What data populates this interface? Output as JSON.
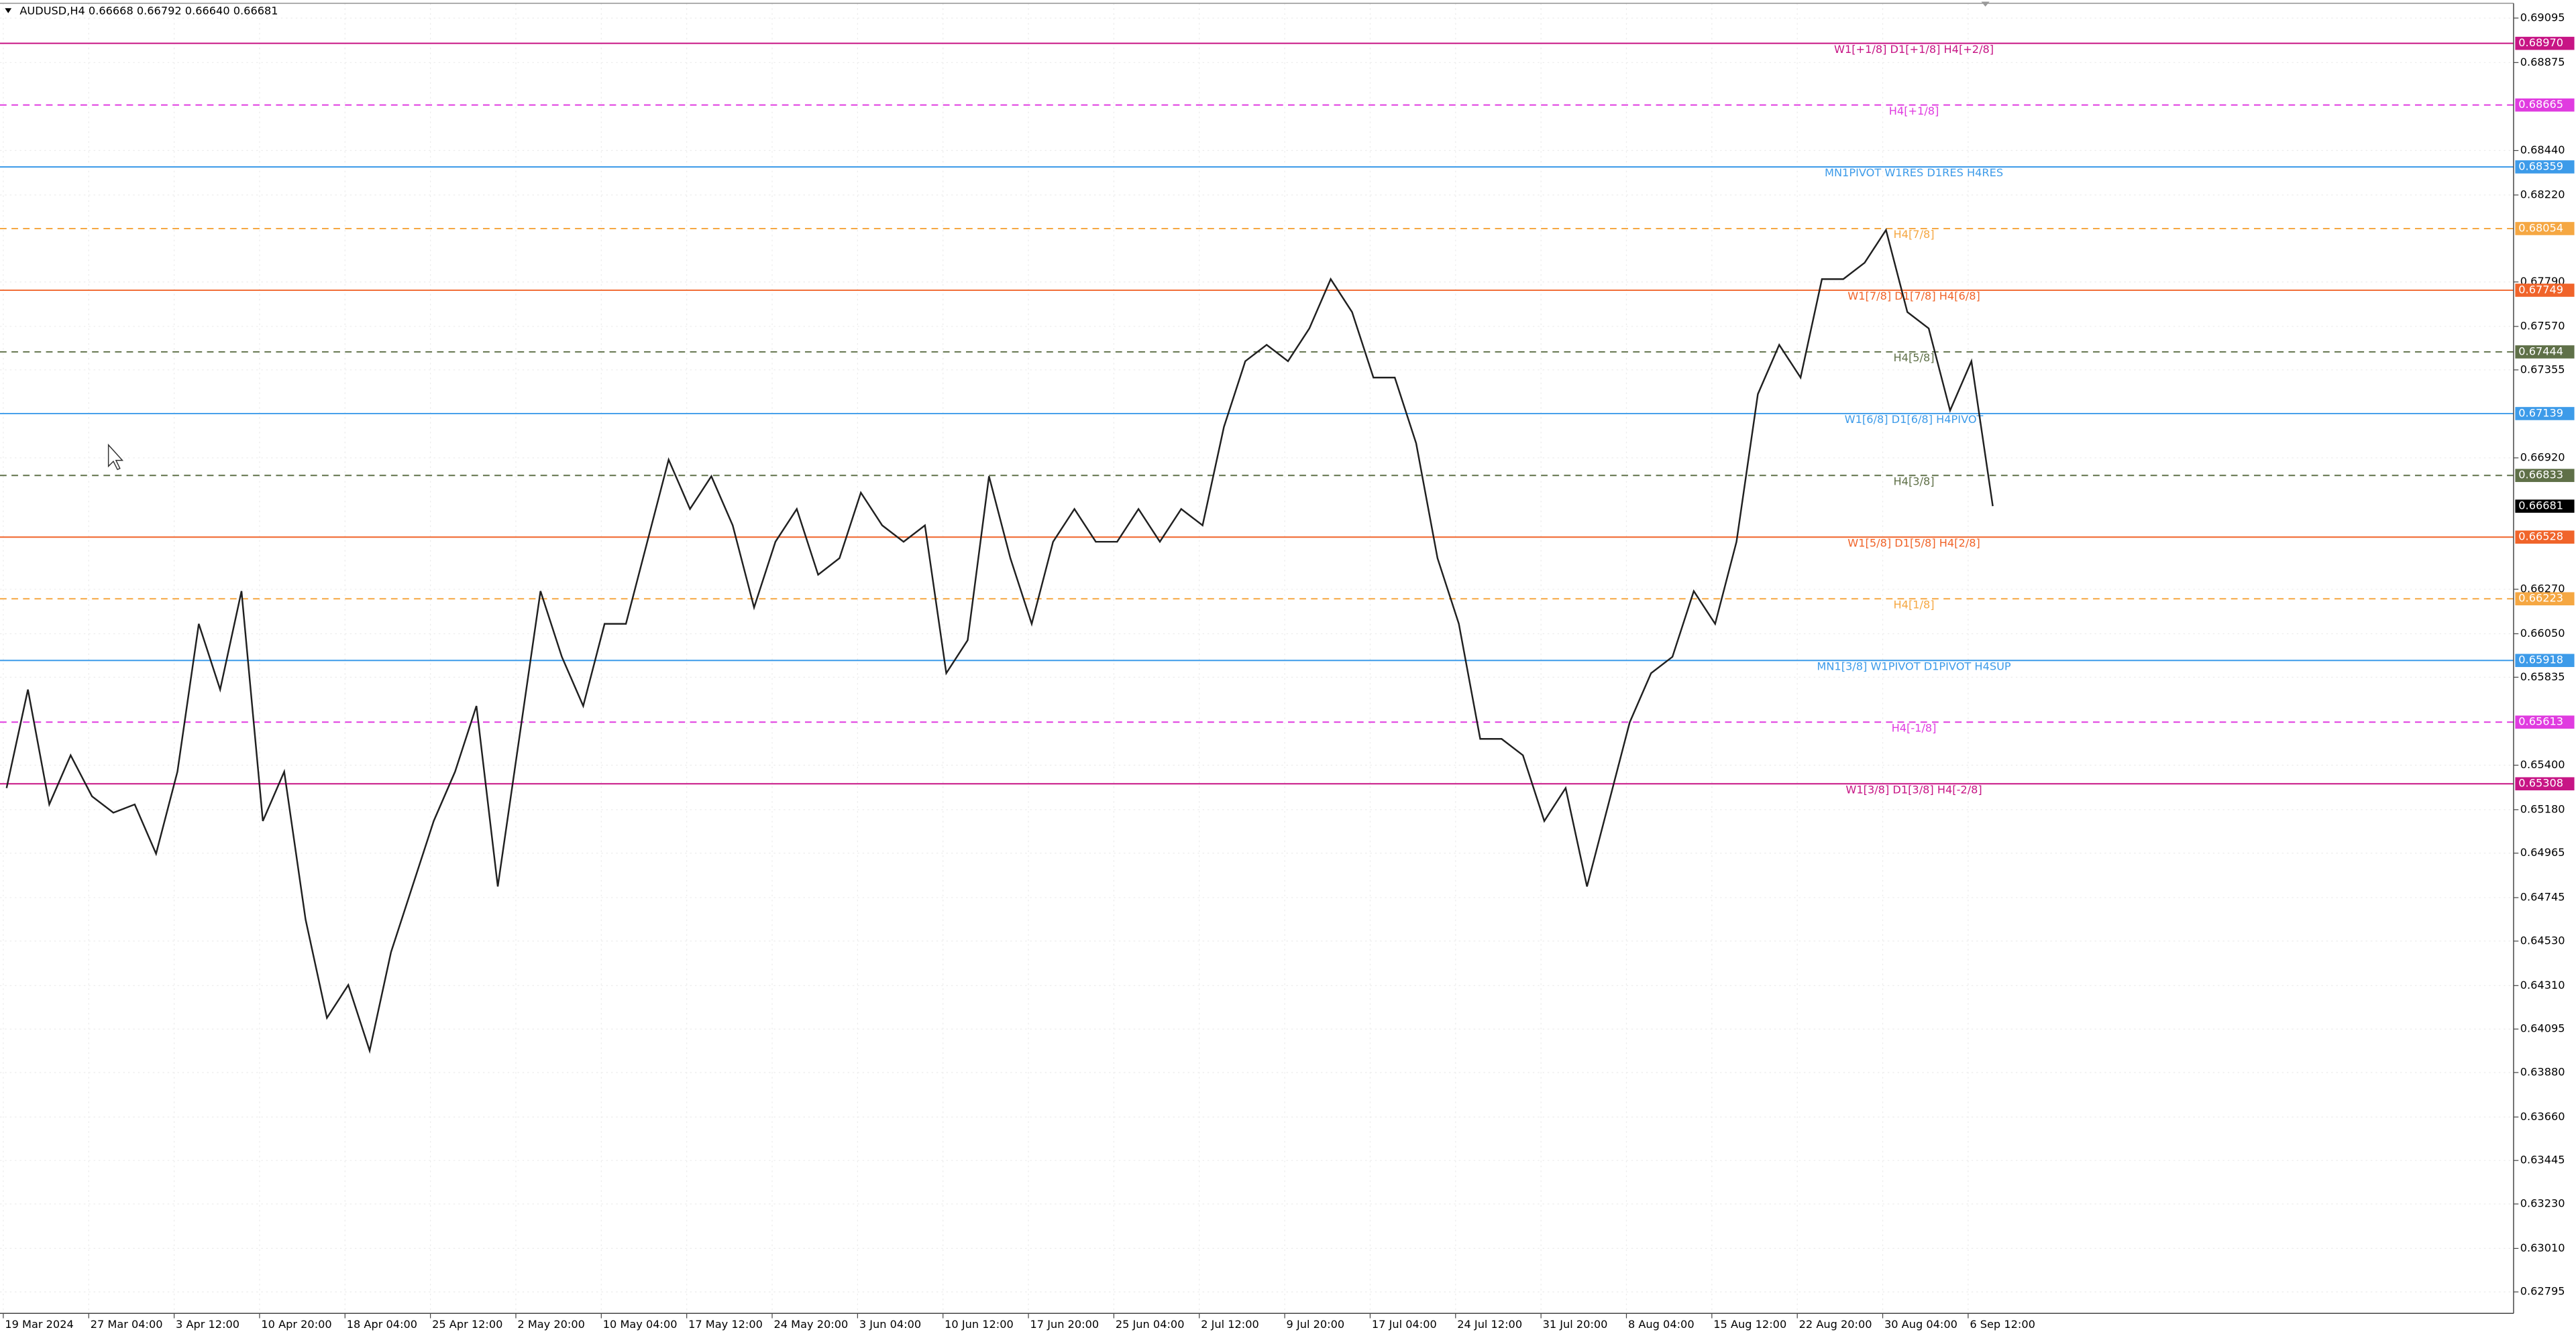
{
  "chart_data": {
    "type": "line",
    "title": "AUDUSD,H4  0.66668 0.66792 0.66640 0.66681",
    "x_labels": [
      "19 Mar 2024",
      "27 Mar 04:00",
      "3 Apr 12:00",
      "10 Apr 20:00",
      "18 Apr 04:00",
      "25 Apr 12:00",
      "2 May 20:00",
      "10 May 04:00",
      "17 May 12:00",
      "24 May 20:00",
      "3 Jun 04:00",
      "10 Jun 12:00",
      "17 Jun 20:00",
      "25 Jun 04:00",
      "2 Jul 12:00",
      "9 Jul 20:00",
      "17 Jul 04:00",
      "24 Jul 12:00",
      "31 Jul 20:00",
      "8 Aug 04:00",
      "15 Aug 12:00",
      "22 Aug 20:00",
      "30 Aug 04:00",
      "6 Sep 12:00"
    ],
    "series": [
      {
        "name": "AUDUSD",
        "color": "#202020",
        "values": [
          0.65287,
          0.65774,
          0.65206,
          0.65449,
          0.65246,
          0.65165,
          0.65206,
          0.64962,
          0.65368,
          0.66099,
          0.65774,
          0.66261,
          0.65124,
          0.65368,
          0.64637,
          0.6415,
          0.64313,
          0.63988,
          0.64475,
          0.648,
          0.65124,
          0.65368,
          0.65693,
          0.648,
          0.6553,
          0.66261,
          0.65936,
          0.65693,
          0.66099,
          0.66099,
          0.66505,
          0.66911,
          0.66667,
          0.66829,
          0.66586,
          0.6618,
          0.66505,
          0.66667,
          0.66342,
          0.66424,
          0.66748,
          0.66586,
          0.66505,
          0.66586,
          0.65855,
          0.66018,
          0.66829,
          0.66424,
          0.66099,
          0.66505,
          0.66667,
          0.66505,
          0.66505,
          0.66667,
          0.66505,
          0.66667,
          0.66586,
          0.67073,
          0.67398,
          0.67479,
          0.67398,
          0.6756,
          0.67804,
          0.67641,
          0.67317,
          0.67317,
          0.66992,
          0.66424,
          0.66099,
          0.6553,
          0.6553,
          0.65449,
          0.65124,
          0.65287,
          0.648,
          0.65206,
          0.65612,
          0.65855,
          0.65936,
          0.66261,
          0.66099,
          0.66505,
          0.67235,
          0.67479,
          0.67317,
          0.67804,
          0.67804,
          0.67885,
          0.68047,
          0.67641,
          0.6756,
          0.67154,
          0.67398,
          0.66681
        ]
      }
    ],
    "ylim": [
      0.62689,
      0.69168
    ],
    "yticks": [
      0.69095,
      0.68875,
      {
        "value": 0.6844,
        "label": "0.68440"
      },
      {
        "value": 0.6822,
        "label": "0.68220"
      },
      {
        "value": 0.6779,
        "label": "0.67790"
      },
      {
        "value": 0.6757,
        "label": "0.67570"
      },
      0.67355,
      {
        "value": 0.6692,
        "label": "0.66920"
      },
      {
        "value": 0.6627,
        "label": "0.66270"
      },
      {
        "value": 0.6605,
        "label": "0.66050"
      },
      0.65835,
      {
        "value": 0.654,
        "label": "0.65400"
      },
      {
        "value": 0.6518,
        "label": "0.65180"
      },
      0.64965,
      0.64745,
      {
        "value": 0.6453,
        "label": "0.64530"
      },
      {
        "value": 0.6431,
        "label": "0.64310"
      },
      0.64095,
      {
        "value": 0.6388,
        "label": "0.63880"
      },
      {
        "value": 0.6366,
        "label": "0.63660"
      },
      0.63445,
      {
        "value": 0.6323,
        "label": "0.63230"
      },
      {
        "value": 0.6301,
        "label": "0.63010"
      },
      0.62795
    ],
    "grid": true,
    "levels": [
      {
        "name": "W1[+1/8] D1[+1/8] H4[+2/8]",
        "value": 0.6897,
        "value_label": "0.68970",
        "color": "#c71585",
        "dashed": false
      },
      {
        "name": "H4[+1/8]",
        "value": 0.68665,
        "color": "#e03ce0",
        "dashed": true
      },
      {
        "name": "MN1PIVOT W1RES D1RES H4RES",
        "value": 0.68359,
        "color": "#3d9be9",
        "dashed": false
      },
      {
        "name": "H4[7/8]",
        "value": 0.68054,
        "color": "#f5a742",
        "dashed": true
      },
      {
        "name": "W1[7/8] D1[7/8] H4[6/8]",
        "value": 0.67749,
        "color": "#f0642a",
        "dashed": false
      },
      {
        "name": "H4[5/8]",
        "value": 0.67444,
        "color": "#5f7048",
        "dashed": true
      },
      {
        "name": "W1[6/8] D1[6/8] H4PIVOT",
        "value": 0.67139,
        "color": "#3d9be9",
        "dashed": false
      },
      {
        "name": "H4[3/8]",
        "value": 0.66833,
        "color": "#5f7048",
        "dashed": true
      },
      {
        "name": "W1[5/8] D1[5/8] H4[2/8]",
        "value": 0.66528,
        "color": "#f0642a",
        "dashed": false
      },
      {
        "name": "H4[1/8]",
        "value": 0.66223,
        "color": "#f5a742",
        "dashed": true
      },
      {
        "name": "MN1[3/8] W1PIVOT D1PIVOT H4SUP",
        "value": 0.65918,
        "color": "#3d9be9",
        "dashed": false
      },
      {
        "name": "H4[-1/8]",
        "value": 0.65613,
        "color": "#e03ce0",
        "dashed": true
      },
      {
        "name": "W1[3/8] D1[3/8] H4[-2/8]",
        "value": 0.65308,
        "color": "#c71585",
        "dashed": false
      }
    ],
    "current": {
      "value": 0.66681,
      "color": "#000000"
    }
  }
}
